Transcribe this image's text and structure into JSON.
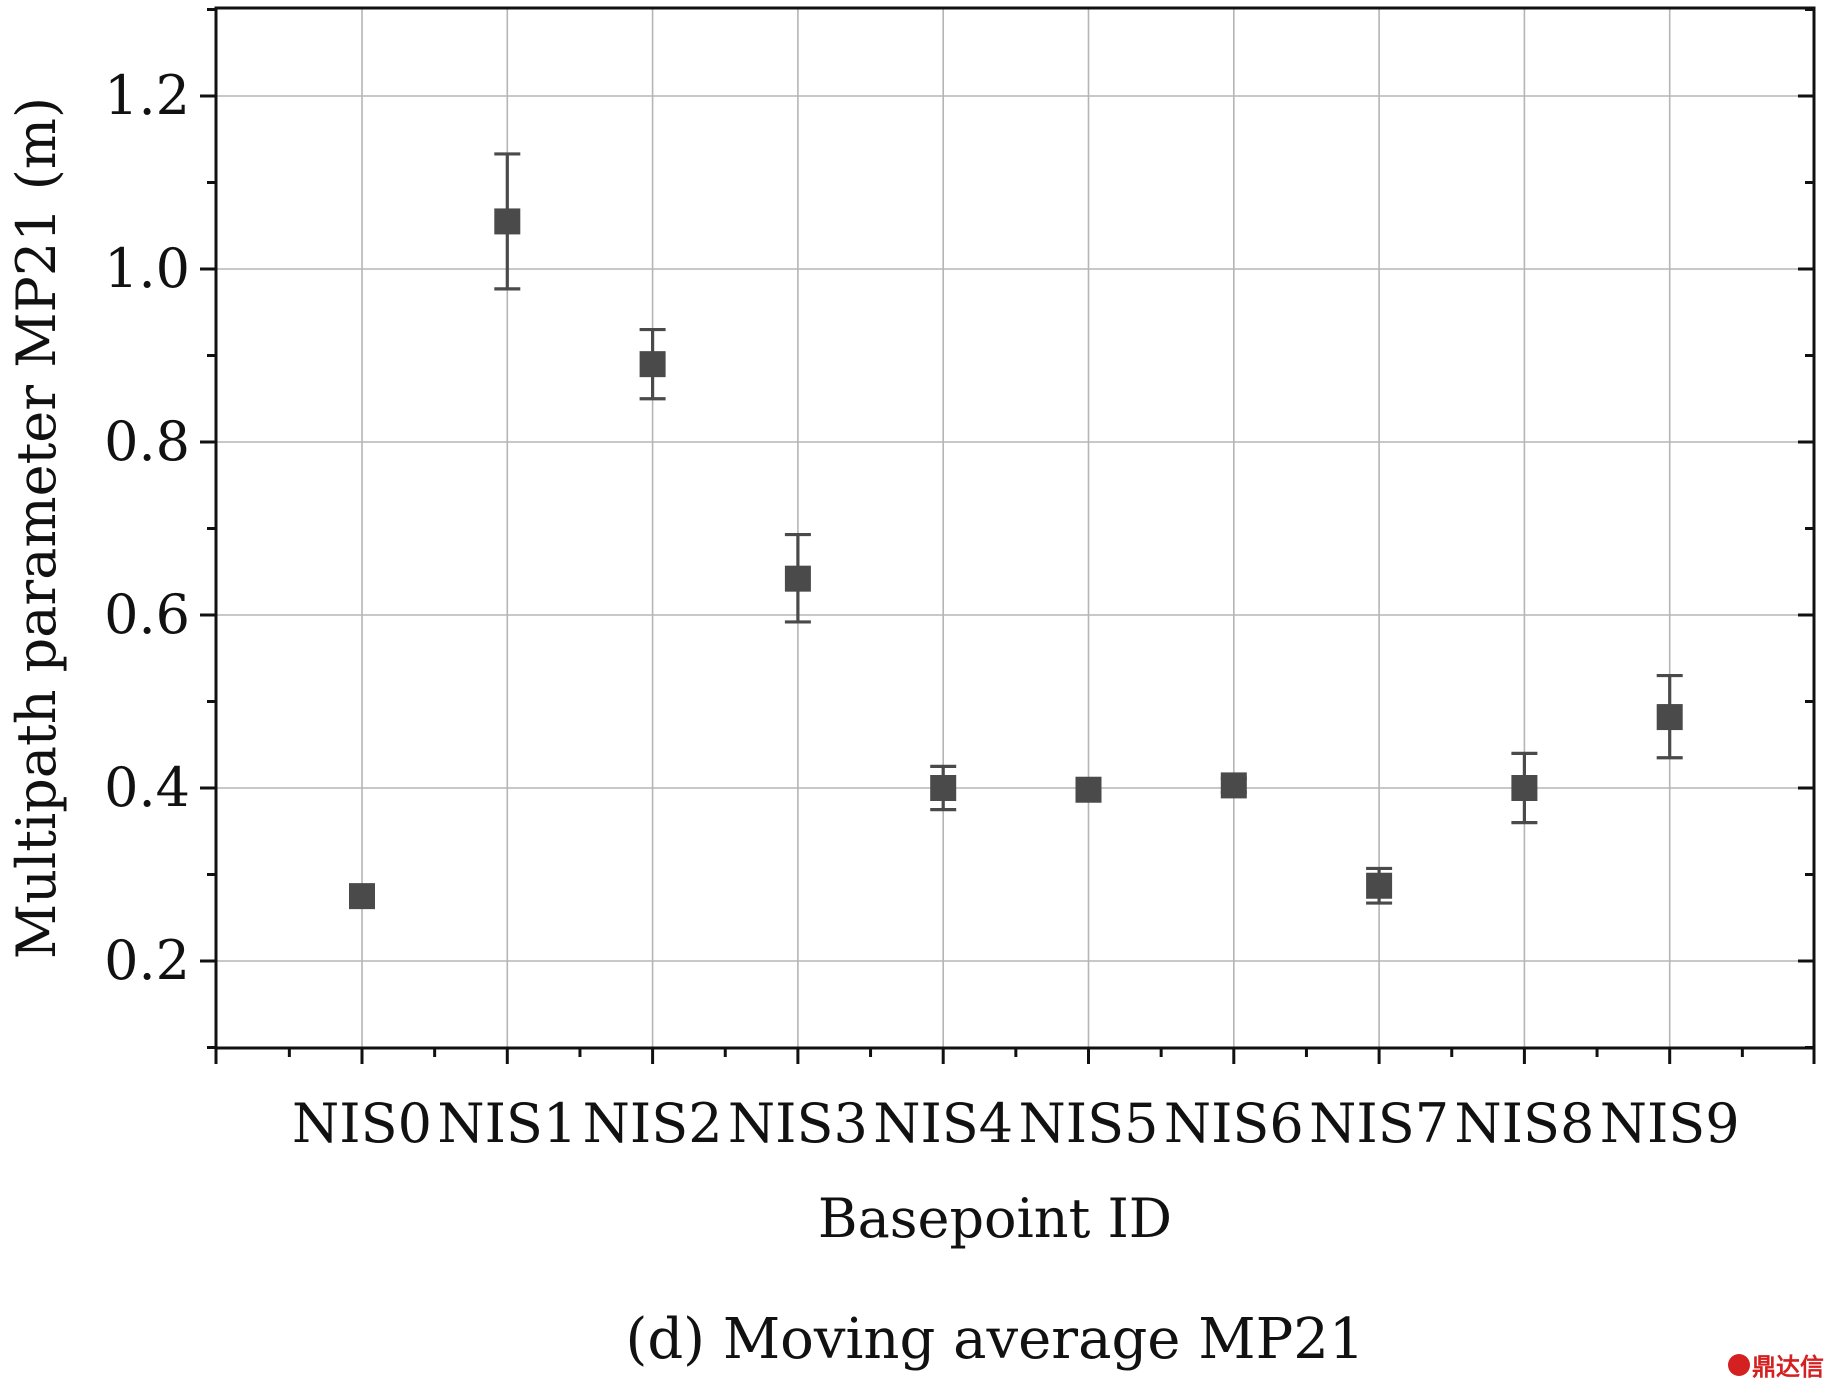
{
  "chart_data": {
    "type": "scatter",
    "categories": [
      "NIS0",
      "NIS1",
      "NIS2",
      "NIS3",
      "NIS4",
      "NIS5",
      "NIS6",
      "NIS7",
      "NIS8",
      "NIS9"
    ],
    "series": [
      {
        "values": [
          0.275,
          1.055,
          0.89,
          0.642,
          0.4,
          0.398,
          0.403,
          0.287,
          0.4,
          0.482
        ],
        "err_low": [
          0.275,
          0.977,
          0.85,
          0.592,
          0.375,
          0.393,
          0.395,
          0.267,
          0.36,
          0.435
        ],
        "err_high": [
          0.275,
          1.133,
          0.93,
          0.693,
          0.425,
          0.403,
          0.411,
          0.307,
          0.44,
          0.53
        ],
        "color": "#4a4a4a",
        "marker": "square"
      }
    ],
    "xlabel": "Basepoint ID",
    "ylabel": "Multipath parameter MP21 (m)",
    "yticks": [
      "0.2",
      "0.4",
      "0.6",
      "0.8",
      "1.0",
      "1.2"
    ],
    "ylim": [
      0.1,
      1.3
    ],
    "grid": true,
    "caption": "(d) Moving average MP21"
  },
  "watermark": {
    "text": "鼎达信",
    "color": "#d42020"
  }
}
